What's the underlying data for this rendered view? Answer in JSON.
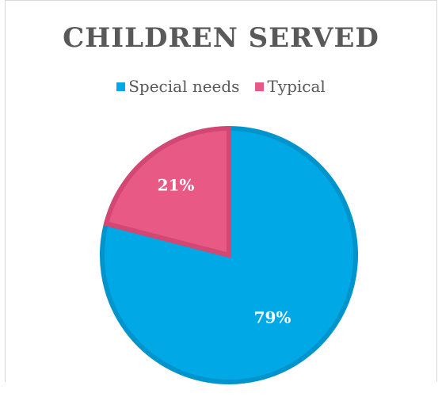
{
  "chart_data": {
    "type": "pie",
    "title": "CHILDREN SERVED",
    "categories": [
      "Special needs",
      "Typical"
    ],
    "values": [
      79,
      21
    ],
    "data_labels": [
      "79%",
      "21%"
    ],
    "colors": [
      "#00a9e6",
      "#e85a85"
    ],
    "edge_colors": [
      "#0094cc",
      "#d24774"
    ],
    "legend_position": "top",
    "start_angle_deg": 0,
    "direction": "clockwise"
  }
}
